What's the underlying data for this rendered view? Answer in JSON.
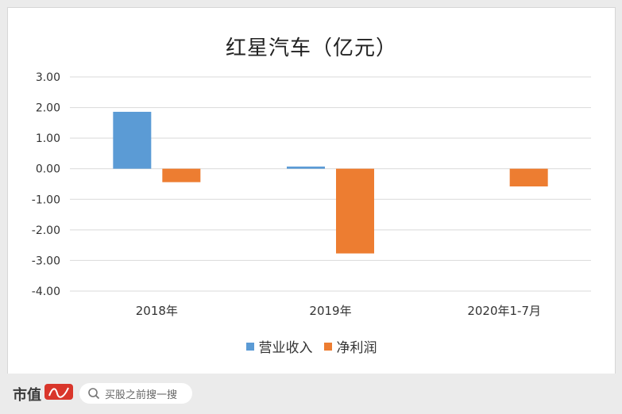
{
  "chart_data": {
    "type": "bar",
    "title": "红星汽车（亿元）",
    "categories": [
      "2018年",
      "2019年",
      "2020年1-7月"
    ],
    "series": [
      {
        "name": "营业收入",
        "values": [
          1.86,
          0.07,
          0.0
        ],
        "color": "#5b9bd5"
      },
      {
        "name": "净利润",
        "values": [
          -0.44,
          -2.77,
          -0.58
        ],
        "color": "#ed7d31"
      }
    ],
    "ylim": [
      -4,
      3
    ],
    "yticks": [
      "3.00",
      "2.00",
      "1.00",
      "0.00",
      "-1.00",
      "-2.00",
      "-3.00",
      "-4.00"
    ],
    "grid": true,
    "legend_position": "bottom"
  },
  "footer": {
    "brand": "市值",
    "search_placeholder": "买股之前搜一搜",
    "icon": "search-icon"
  }
}
